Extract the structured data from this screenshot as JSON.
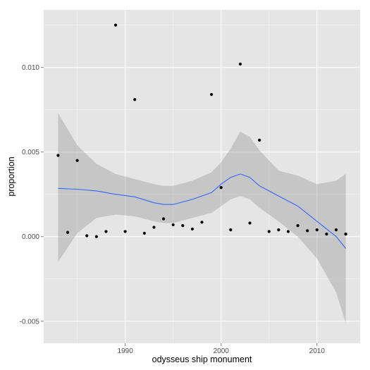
{
  "chart_data": {
    "type": "scatter",
    "xlabel": "odysseus ship monument",
    "ylabel": "proportion",
    "xlim": [
      1981.5,
      2014.5
    ],
    "ylim": [
      -0.0063,
      0.0134
    ],
    "x_ticks": [
      1990,
      2000,
      2010
    ],
    "x_tick_labels": [
      "1990",
      "2000",
      "2010"
    ],
    "y_ticks": [
      -0.005,
      0,
      0.005,
      0.01
    ],
    "y_tick_labels": [
      "-0.005",
      "0.000",
      "0.005",
      "0.010"
    ],
    "grid": true,
    "legend": "none",
    "colors": {
      "panel": "#e5e5e5",
      "grid_major": "#ffffff",
      "points": "#000000",
      "smooth_line": "#3366ff",
      "confidence_band": "#999999"
    },
    "points": {
      "x": [
        1983,
        1984,
        1985,
        1986,
        1987,
        1988,
        1989,
        1990,
        1991,
        1992,
        1993,
        1994,
        1995,
        1996,
        1997,
        1998,
        1999,
        2000,
        2001,
        2002,
        2003,
        2004,
        2005,
        2006,
        2007,
        2008,
        2009,
        2010,
        2011,
        2012,
        2013
      ],
      "y": [
        0.0048,
        0.00025,
        0.0045,
        5e-05,
        0.0,
        0.0003,
        0.0125,
        0.0003,
        0.0081,
        0.0002,
        0.00055,
        0.00105,
        0.0007,
        0.00065,
        0.00045,
        0.00085,
        0.0084,
        0.0029,
        0.0004,
        0.0102,
        0.0008,
        0.0057,
        0.0003,
        0.0004,
        0.0003,
        0.00065,
        0.00035,
        0.0004,
        0.00015,
        0.0004,
        0.00015
      ]
    },
    "smooth": {
      "method": "loess",
      "x": [
        1983,
        1985,
        1987,
        1989,
        1991,
        1993,
        1994,
        1995,
        1997,
        1999,
        2000,
        2001,
        2002,
        2003,
        2004,
        2006,
        2008,
        2010,
        2012,
        2013
      ],
      "y": [
        0.00285,
        0.0028,
        0.0027,
        0.0025,
        0.00235,
        0.002,
        0.0019,
        0.0019,
        0.0022,
        0.0026,
        0.0031,
        0.0035,
        0.0037,
        0.0035,
        0.003,
        0.0024,
        0.0018,
        0.0009,
        0.0,
        -0.0007
      ],
      "ci_lower": [
        -0.0015,
        0.0002,
        0.0011,
        0.0013,
        0.0012,
        0.0009,
        0.0008,
        0.0008,
        0.0011,
        0.0014,
        0.0018,
        0.0022,
        0.0024,
        0.0022,
        0.0017,
        0.0009,
        0.0,
        -0.0013,
        -0.0033,
        -0.0051
      ],
      "ci_upper": [
        0.0073,
        0.0054,
        0.0043,
        0.0037,
        0.0034,
        0.0031,
        0.003,
        0.003,
        0.0033,
        0.0038,
        0.0044,
        0.0052,
        0.0062,
        0.0059,
        0.0051,
        0.0039,
        0.0036,
        0.0031,
        0.0033,
        0.0037
      ]
    }
  }
}
